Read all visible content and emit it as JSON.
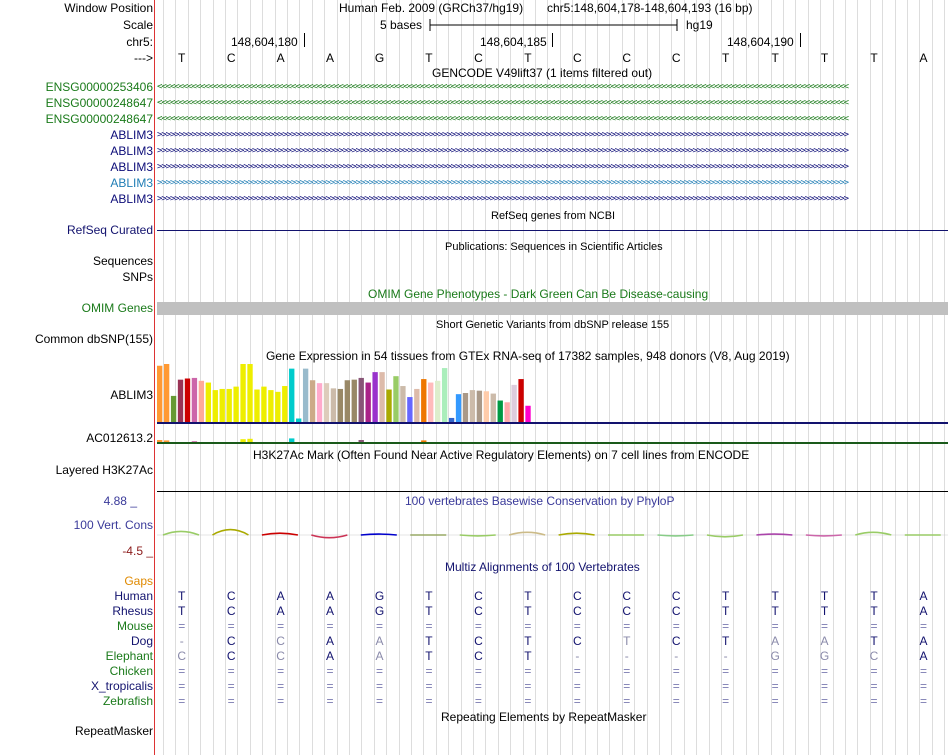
{
  "header": {
    "window_position_label": "Window Position",
    "scale_label": "Scale",
    "chrom_label": "chr5:",
    "arrow_label": "--->",
    "assembly": "Human Feb. 2009 (GRCh37/hg19)",
    "position": "chr5:148,604,178-148,604,193 (16 bp)",
    "scale_text": "5 bases",
    "db": "hg19",
    "ticks": [
      "148,604,180",
      "148,604,185",
      "148,604,190"
    ]
  },
  "reference_bases": [
    "T",
    "C",
    "A",
    "A",
    "G",
    "T",
    "C",
    "T",
    "C",
    "C",
    "C",
    "T",
    "T",
    "T",
    "T",
    "A"
  ],
  "gencode": {
    "title": "GENCODE V49lift37 (1 items filtered out)",
    "tracks": [
      {
        "name": "ENSG00000253406",
        "strand": "-",
        "color": "#1a7a1a"
      },
      {
        "name": "ENSG00000248647",
        "strand": "-",
        "color": "#1a7a1a"
      },
      {
        "name": "ENSG00000248647",
        "strand": "-",
        "color": "#1a7a1a"
      },
      {
        "name": "ABLIM3",
        "strand": "+",
        "color": "#0c0c78"
      },
      {
        "name": "ABLIM3",
        "strand": "+",
        "color": "#0c0c78"
      },
      {
        "name": "ABLIM3",
        "strand": "+",
        "color": "#0c0c78"
      },
      {
        "name": "ABLIM3",
        "strand": "+",
        "color": "#1f7db5"
      },
      {
        "name": "ABLIM3",
        "strand": "+",
        "color": "#0c0c78"
      }
    ]
  },
  "refseq": {
    "title": "RefSeq genes from NCBI",
    "label": "RefSeq Curated"
  },
  "publications": {
    "title": "Publications: Sequences in Scientific Articles",
    "label1": "Sequences",
    "label2": "SNPs"
  },
  "omim": {
    "title": "OMIM Gene Phenotypes - Dark Green Can Be Disease-causing",
    "label": "OMIM Genes"
  },
  "dbsnp": {
    "title": "Short Genetic Variants from dbSNP release 155",
    "label": "Common dbSNP(155)"
  },
  "gtex": {
    "title": "Gene Expression in 54 tissues from GTEx RNA-seq of 17382 samples, 948 donors (V8, Aug 2019)",
    "gene1": "ABLIM3",
    "gene2": "AC012613.2",
    "tissue_values": [
      0.97,
      1.0,
      0.45,
      0.73,
      0.75,
      0.76,
      0.71,
      0.68,
      0.55,
      0.57,
      0.57,
      0.61,
      1.0,
      1.0,
      0.56,
      0.61,
      0.55,
      0.52,
      0.62,
      0.92,
      0.06,
      0.92,
      0.72,
      0.67,
      0.67,
      0.58,
      0.57,
      0.72,
      0.73,
      0.76,
      0.68,
      0.86,
      0.86,
      0.56,
      0.79,
      0.62,
      0.43,
      0.57,
      0.74,
      0.68,
      0.71,
      0.93,
      0.07,
      0.48,
      0.5,
      0.55,
      0.54,
      0.53,
      0.49,
      0.37,
      0.34,
      0.64,
      0.74,
      0.28
    ],
    "tissue_colors": [
      "#ff9933",
      "#ff9933",
      "#669933",
      "#993355",
      "#cc0000",
      "#cc66aa",
      "#ffaa99",
      "#eeee00",
      "#eeee00",
      "#eeee00",
      "#eeee00",
      "#eeee00",
      "#eeee00",
      "#eeee00",
      "#eeee00",
      "#eeee00",
      "#eeee00",
      "#eeee00",
      "#eeee00",
      "#00cccc",
      "#00cccc",
      "#99bbcc",
      "#ccaa88",
      "#ffaacc",
      "#ddccbb",
      "#ccbbaa",
      "#998866",
      "#998866",
      "#998866",
      "#885577",
      "#aa2288",
      "#9933cc",
      "#ddbbaa",
      "#aaaa00",
      "#99cc66",
      "#ccbbaa",
      "#6666ff",
      "#ddbbaa",
      "#ee7700",
      "#ffbbbb",
      "#ddeecc",
      "#aaeebb",
      "#3366cc",
      "#3399ff",
      "#aa9988",
      "#ccbbaa",
      "#aa9988",
      "#ffccaa",
      "#ccbbaa",
      "#009944",
      "#ffaaaa",
      "#ddccdd",
      "#cc0000",
      "#ff00cc"
    ],
    "second_values": [
      0.5,
      0.4,
      0,
      0,
      0,
      0.2,
      0,
      0,
      0,
      0,
      0,
      0,
      0.7,
      0.8,
      0,
      0,
      0,
      0,
      0,
      0.9,
      0,
      0,
      0,
      0,
      0,
      0,
      0,
      0,
      0,
      0.5,
      0,
      0,
      0,
      0,
      0,
      0,
      0,
      0,
      0.4,
      0,
      0,
      0,
      0,
      0,
      0,
      0,
      0,
      0,
      0,
      0,
      0,
      0,
      0,
      0
    ]
  },
  "h3k27ac": {
    "title": "H3K27Ac Mark (Often Found Near Active Regulatory Elements) on 7 cell lines from ENCODE",
    "label": "Layered H3K27Ac"
  },
  "phylop": {
    "title": "100 vertebrates Basewise Conservation by PhyloP",
    "label": "100 Vert. Cons",
    "max": "4.88 _",
    "min": "-4.5 _",
    "scores": [
      0.4,
      0.6,
      0.2,
      -0.3,
      0.1,
      0.0,
      -0.1,
      0.3,
      0.2,
      0.0,
      -0.1,
      -0.2,
      0.1,
      -0.1,
      0.3,
      0.0
    ]
  },
  "multiz": {
    "title": "Multiz Alignments of 100 Vertebrates",
    "gaps_label": "Gaps",
    "species": [
      {
        "name": "Human",
        "bases": [
          "T",
          "C",
          "A",
          "A",
          "G",
          "T",
          "C",
          "T",
          "C",
          "C",
          "C",
          "T",
          "T",
          "T",
          "T",
          "A"
        ]
      },
      {
        "name": "Rhesus",
        "bases": [
          "T",
          "C",
          "A",
          "A",
          "G",
          "T",
          "C",
          "T",
          "C",
          "C",
          "C",
          "T",
          "T",
          "T",
          "T",
          "A"
        ]
      },
      {
        "name": "Mouse",
        "bases": [
          "=",
          "=",
          "=",
          "=",
          "=",
          "=",
          "=",
          "=",
          "=",
          "=",
          "=",
          "=",
          "=",
          "=",
          "=",
          "="
        ]
      },
      {
        "name": "Dog",
        "bases": [
          "-",
          "C",
          "C",
          "A",
          "A",
          "T",
          "C",
          "T",
          "C",
          "T",
          "C",
          "T",
          "A",
          "A",
          "T",
          "A"
        ]
      },
      {
        "name": "Elephant",
        "bases": [
          "C",
          "C",
          "C",
          "A",
          "A",
          "T",
          "C",
          "T",
          "-",
          "-",
          "-",
          "-",
          "G",
          "G",
          "C",
          "A"
        ]
      },
      {
        "name": "Chicken",
        "bases": [
          "=",
          "=",
          "=",
          "=",
          "=",
          "=",
          "=",
          "=",
          "=",
          "=",
          "=",
          "=",
          "=",
          "=",
          "=",
          "="
        ]
      },
      {
        "name": "X_tropicalis",
        "bases": [
          "=",
          "=",
          "=",
          "=",
          "=",
          "=",
          "=",
          "=",
          "=",
          "=",
          "=",
          "=",
          "=",
          "=",
          "=",
          "="
        ]
      },
      {
        "name": "Zebrafish",
        "bases": [
          "=",
          "=",
          "=",
          "=",
          "=",
          "=",
          "=",
          "=",
          "=",
          "=",
          "=",
          "=",
          "=",
          "=",
          "=",
          "="
        ]
      }
    ]
  },
  "repeatmasker": {
    "title": "Repeating Elements by RepeatMasker",
    "label": "RepeatMasker"
  },
  "colors": {
    "green": "#1a7a1a",
    "navy": "#0c0c78",
    "refseq": "#12126e",
    "omim_bar": "#c0c0c0",
    "phylop": "#3a3a9a",
    "gaps": "#e08a00",
    "grey_base": "#7a7ab0"
  }
}
